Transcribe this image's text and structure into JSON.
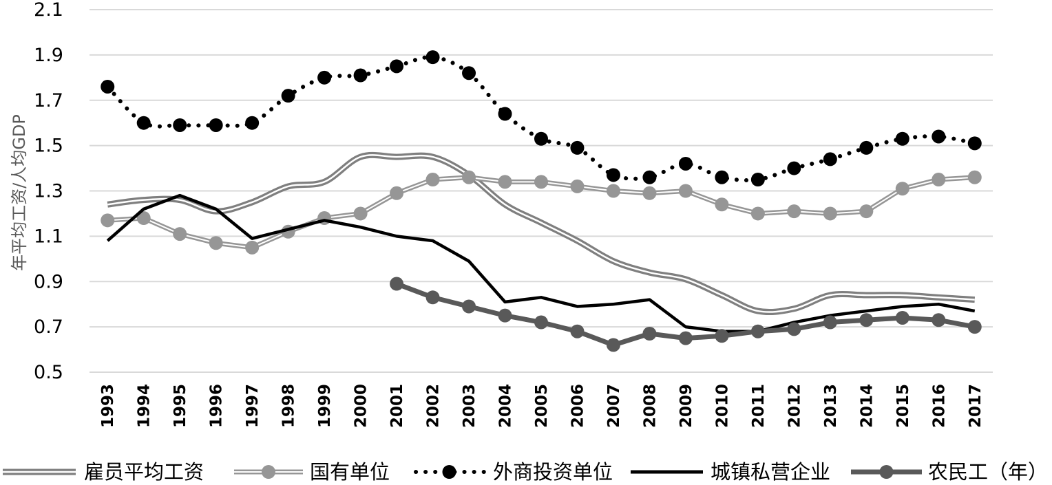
{
  "chart_data": {
    "type": "line",
    "title": "",
    "xlabel": "",
    "ylabel": "年平均工资/人均GDP",
    "ylim": [
      0.5,
      2.1
    ],
    "yticks": [
      "0.5",
      "0.7",
      "0.9",
      "1.1",
      "1.3",
      "1.5",
      "1.7",
      "1.9",
      "2.1"
    ],
    "grid": true,
    "legend_position": "bottom",
    "x": [
      "1993",
      "1994",
      "1995",
      "1996",
      "1997",
      "1998",
      "1999",
      "2000",
      "2001",
      "2002",
      "2003",
      "2004",
      "2005",
      "2006",
      "2007",
      "2008",
      "2009",
      "2010",
      "2011",
      "2012",
      "2013",
      "2014",
      "2015",
      "2016",
      "2017"
    ],
    "series": [
      {
        "name": "雇员平均工资",
        "style": "double-line",
        "color": "#7f7f7f",
        "values": [
          1.24,
          1.26,
          1.26,
          1.21,
          1.25,
          1.32,
          1.34,
          1.45,
          1.45,
          1.45,
          1.37,
          1.24,
          1.16,
          1.08,
          0.99,
          0.94,
          0.91,
          0.84,
          0.77,
          0.78,
          0.84,
          0.84,
          0.84,
          0.83,
          0.82
        ]
      },
      {
        "name": "国有单位",
        "style": "double-line-markers",
        "color": "#969696",
        "values": [
          1.17,
          1.18,
          1.11,
          1.07,
          1.05,
          1.12,
          1.18,
          1.2,
          1.29,
          1.35,
          1.36,
          1.34,
          1.34,
          1.32,
          1.3,
          1.29,
          1.3,
          1.24,
          1.2,
          1.21,
          1.2,
          1.21,
          1.31,
          1.35,
          1.36
        ]
      },
      {
        "name": "外商投资单位",
        "style": "dotted-markers",
        "color": "#000000",
        "values": [
          1.76,
          1.6,
          1.59,
          1.59,
          1.6,
          1.72,
          1.8,
          1.81,
          1.85,
          1.89,
          1.82,
          1.64,
          1.53,
          1.49,
          1.37,
          1.36,
          1.42,
          1.36,
          1.35,
          1.4,
          1.44,
          1.49,
          1.53,
          1.54,
          1.51
        ]
      },
      {
        "name": "城镇私营企业",
        "style": "solid",
        "color": "#000000",
        "values": [
          1.08,
          1.22,
          1.28,
          1.22,
          1.09,
          1.13,
          1.17,
          1.14,
          1.1,
          1.08,
          0.99,
          0.81,
          0.83,
          0.79,
          0.8,
          0.82,
          0.7,
          0.68,
          0.68,
          0.72,
          0.75,
          0.77,
          0.79,
          0.8,
          0.77
        ]
      },
      {
        "name": "农民工（年）",
        "style": "solid-markers",
        "color": "#595959",
        "start_index": 8,
        "values": [
          null,
          null,
          null,
          null,
          null,
          null,
          null,
          null,
          0.89,
          0.83,
          0.79,
          0.75,
          0.72,
          0.68,
          0.62,
          0.67,
          0.65,
          0.66,
          0.68,
          0.69,
          0.72,
          0.73,
          0.74,
          0.73,
          0.7
        ]
      }
    ]
  }
}
